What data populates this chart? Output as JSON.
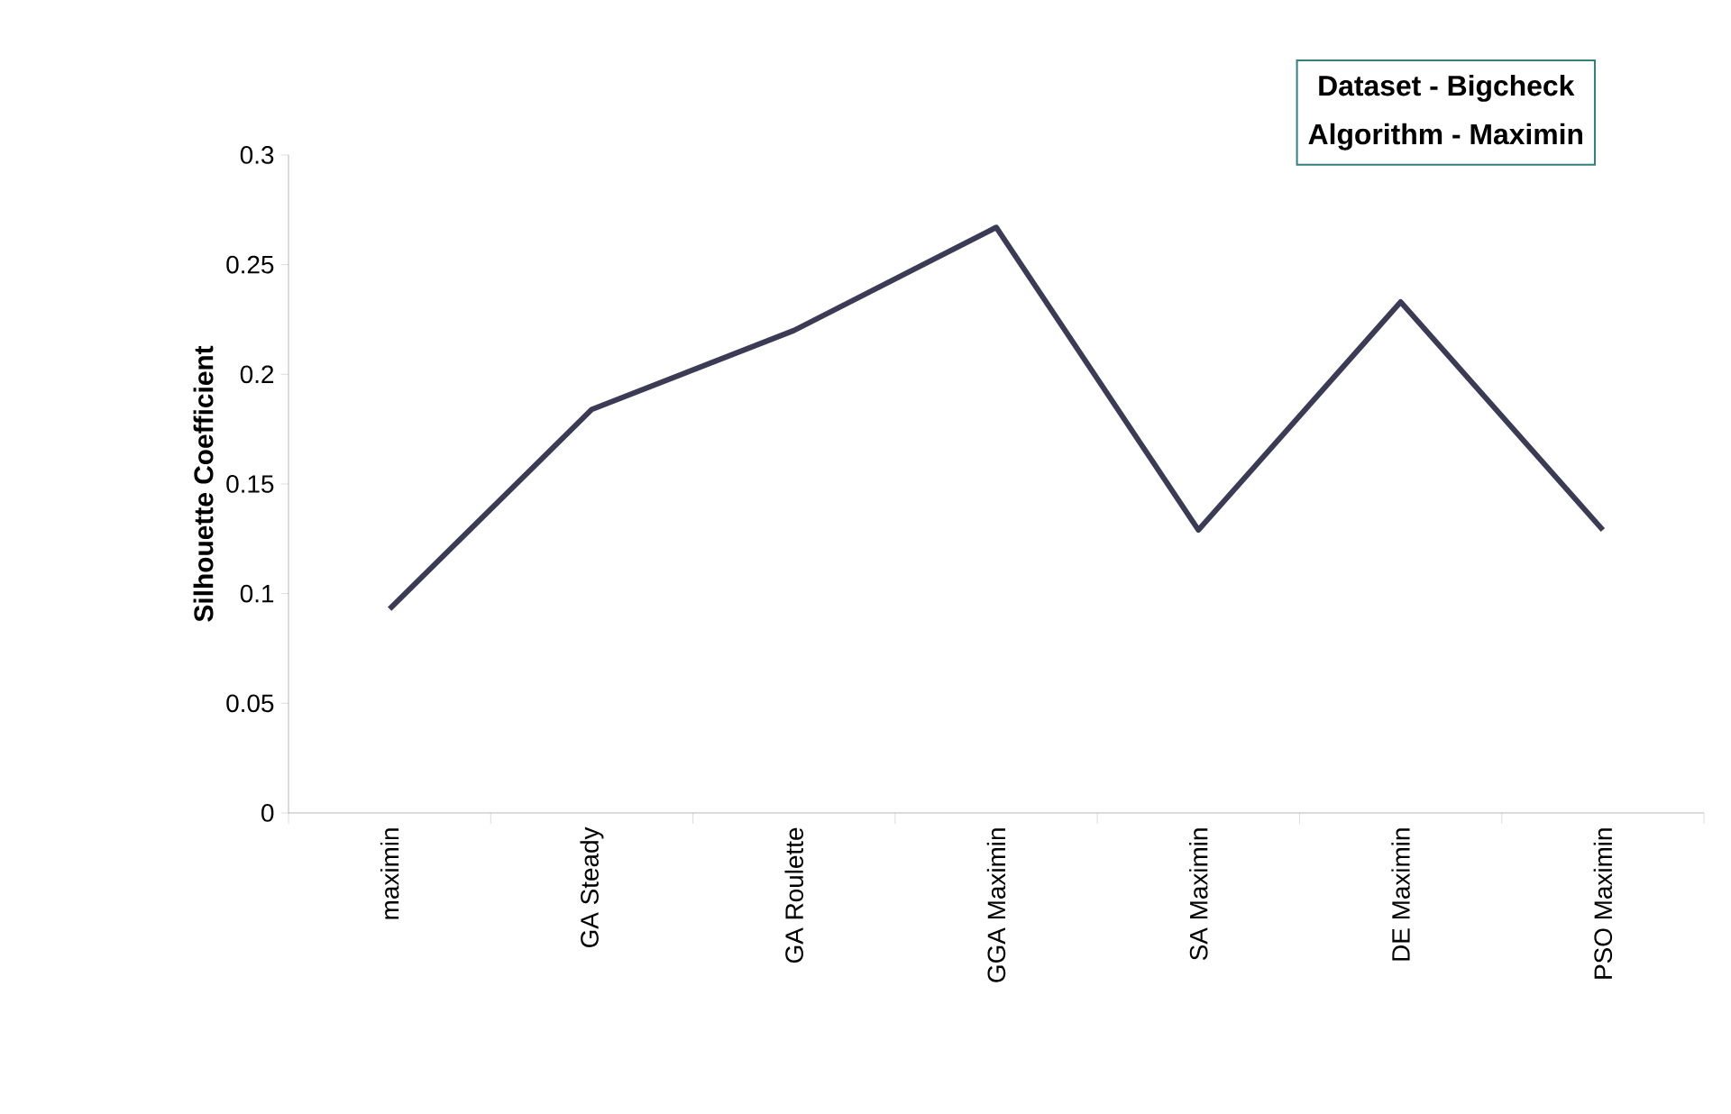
{
  "chart_data": {
    "type": "line",
    "ylabel": "Silhouette Coefficient",
    "categories": [
      "maximin",
      "GA Steady",
      "GA Roulette",
      "GGA Maximin",
      "SA Maximin",
      "DE Maximin",
      "PSO Maximin"
    ],
    "series": [
      {
        "color": "#3b3b55",
        "values": [
          0.093,
          0.184,
          0.22,
          0.267,
          0.129,
          0.233,
          0.129
        ]
      }
    ],
    "ylim": [
      0,
      0.3
    ],
    "yticks": [
      0,
      0.05,
      0.1,
      0.15,
      0.2,
      0.25,
      0.3
    ],
    "annotations": [
      "Dataset - Bigcheck",
      "Algorithm - Maximin"
    ],
    "grid": false,
    "marker": "none",
    "line_style": "solid"
  }
}
